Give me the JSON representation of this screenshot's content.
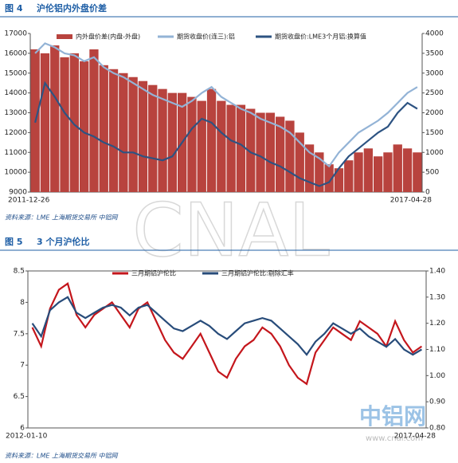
{
  "watermark": [
    "CNAL",
    "中铝网",
    "www.cnal.com"
  ],
  "chart_data": [
    {
      "type": "bar_line",
      "figure": "图 4",
      "title": "沪伦铝内外盘价差",
      "source": "资料来源：LME    上海期货交易所    中铝网",
      "categories": [
        "2011-12-26",
        null,
        null,
        null,
        null,
        null,
        null,
        null,
        null,
        null,
        null,
        null,
        null,
        null,
        null,
        null,
        null,
        null,
        null,
        null,
        null,
        null,
        null,
        null,
        null,
        null,
        null,
        null,
        null,
        null,
        null,
        null,
        null,
        null,
        null,
        null,
        null,
        null,
        null,
        "2017-04-28"
      ],
      "series": [
        {
          "name": "内外盘价差(内盘-外盘)",
          "type": "bar",
          "axis": "y2",
          "color": "#b8433e",
          "values": [
            3600,
            3500,
            3700,
            3400,
            3500,
            3300,
            3600,
            3200,
            3100,
            3000,
            2900,
            2800,
            2700,
            2600,
            2500,
            2500,
            2400,
            2300,
            2600,
            2300,
            2200,
            2200,
            2100,
            2000,
            2000,
            1900,
            1800,
            1500,
            1200,
            1000,
            700,
            600,
            800,
            1000,
            1100,
            900,
            1000,
            1200,
            1100,
            1000
          ]
        },
        {
          "name": "期货收盘价(连三):铝",
          "type": "line",
          "color": "#93b3d6",
          "values": [
            16000,
            16500,
            16300,
            16000,
            15900,
            15600,
            15800,
            15300,
            15000,
            14800,
            14500,
            14200,
            13900,
            13700,
            13500,
            13300,
            13600,
            14000,
            14300,
            13800,
            13500,
            13200,
            13000,
            12700,
            12500,
            12300,
            12000,
            11500,
            11000,
            10700,
            10300,
            11000,
            11500,
            12000,
            12300,
            12600,
            13000,
            13500,
            14000,
            14300
          ]
        },
        {
          "name": "期货收盘价:LME3个月铝:换算值",
          "type": "line",
          "color": "#2d5382",
          "values": [
            12500,
            14500,
            13800,
            13000,
            12400,
            12000,
            11800,
            11500,
            11300,
            11000,
            11000,
            10800,
            10700,
            10600,
            10800,
            11500,
            12200,
            12700,
            12500,
            12000,
            11600,
            11400,
            11000,
            10800,
            10500,
            10300,
            10000,
            9700,
            9500,
            9300,
            9500,
            10200,
            10800,
            11200,
            11600,
            12000,
            12300,
            13000,
            13500,
            13200
          ]
        }
      ],
      "ylim": [
        9000,
        17000
      ],
      "yticks": [
        9000,
        10000,
        11000,
        12000,
        13000,
        14000,
        15000,
        16000,
        17000
      ],
      "y2lim": [
        0,
        4000
      ],
      "y2ticks": [
        0,
        500,
        1000,
        1500,
        2000,
        2500,
        3000,
        3500,
        4000
      ]
    },
    {
      "type": "line",
      "figure": "图 5",
      "title": "3 个月沪伦比",
      "source": "资料来源：LME    上海期货交易所    中铝网",
      "categories": [
        "2012-01-10",
        null,
        null,
        null,
        null,
        null,
        null,
        null,
        null,
        null,
        null,
        null,
        null,
        null,
        null,
        null,
        null,
        null,
        null,
        null,
        null,
        null,
        null,
        null,
        null,
        null,
        null,
        null,
        null,
        null,
        null,
        null,
        null,
        null,
        null,
        null,
        null,
        null,
        null,
        null,
        null,
        null,
        null,
        null,
        "2017-04-28"
      ],
      "series": [
        {
          "name": "三月期铝沪伦比",
          "type": "line",
          "color": "#c4161c",
          "values": [
            7.6,
            7.3,
            7.9,
            8.2,
            8.3,
            7.8,
            7.6,
            7.8,
            7.9,
            8.0,
            7.8,
            7.6,
            7.9,
            8.0,
            7.7,
            7.4,
            7.2,
            7.1,
            7.3,
            7.5,
            7.2,
            6.9,
            6.8,
            7.1,
            7.3,
            7.4,
            7.6,
            7.5,
            7.3,
            7.0,
            6.8,
            6.7,
            7.2,
            7.4,
            7.6,
            7.5,
            7.4,
            7.7,
            7.6,
            7.5,
            7.3,
            7.7,
            7.4,
            7.2,
            7.3
          ]
        },
        {
          "name": "三月期铝沪伦比:剔除汇率",
          "type": "line",
          "axis": "y2",
          "color": "#284c7a",
          "values": [
            1.2,
            1.15,
            1.25,
            1.28,
            1.3,
            1.24,
            1.22,
            1.24,
            1.26,
            1.27,
            1.26,
            1.23,
            1.26,
            1.27,
            1.24,
            1.21,
            1.18,
            1.17,
            1.19,
            1.21,
            1.19,
            1.16,
            1.14,
            1.17,
            1.2,
            1.21,
            1.22,
            1.21,
            1.18,
            1.15,
            1.12,
            1.08,
            1.13,
            1.16,
            1.2,
            1.18,
            1.16,
            1.18,
            1.15,
            1.13,
            1.11,
            1.14,
            1.1,
            1.08,
            1.1
          ]
        }
      ],
      "ylim": [
        6,
        8.5
      ],
      "yticks": [
        6,
        6.5,
        7,
        7.5,
        8,
        8.5
      ],
      "y2lim": [
        0.8,
        1.4
      ],
      "y2ticks": [
        {
          "value": 0.8,
          "label": "0.80"
        },
        {
          "value": 0.9,
          "label": "0.90"
        },
        {
          "value": 1.0,
          "label": "1.00"
        },
        {
          "value": 1.1,
          "label": "1.10"
        },
        {
          "value": 1.2,
          "label": "1.20"
        },
        {
          "value": 1.3,
          "label": "1.30"
        },
        {
          "value": 1.4,
          "label": "1.40"
        }
      ]
    }
  ]
}
